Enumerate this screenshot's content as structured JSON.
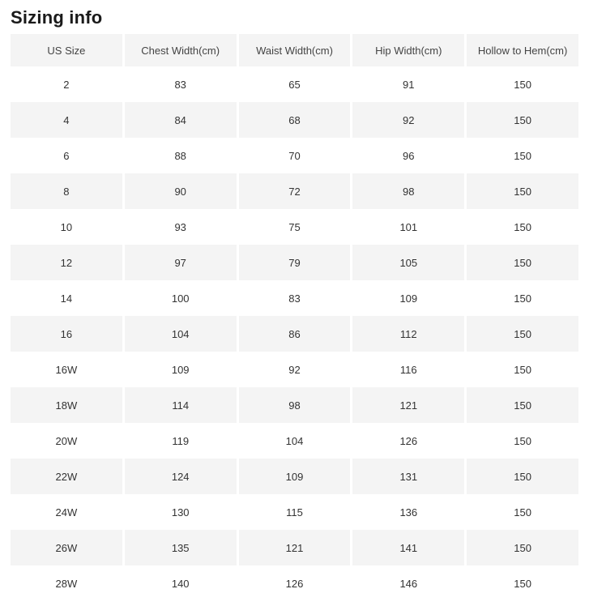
{
  "page": {
    "title": "Sizing info"
  },
  "table": {
    "columns": [
      "US Size",
      "Chest Width(cm)",
      "Waist Width(cm)",
      "Hip Width(cm)",
      "Hollow to Hem(cm)"
    ],
    "rows": [
      [
        "2",
        "83",
        "65",
        "91",
        "150"
      ],
      [
        "4",
        "84",
        "68",
        "92",
        "150"
      ],
      [
        "6",
        "88",
        "70",
        "96",
        "150"
      ],
      [
        "8",
        "90",
        "72",
        "98",
        "150"
      ],
      [
        "10",
        "93",
        "75",
        "101",
        "150"
      ],
      [
        "12",
        "97",
        "79",
        "105",
        "150"
      ],
      [
        "14",
        "100",
        "83",
        "109",
        "150"
      ],
      [
        "16",
        "104",
        "86",
        "112",
        "150"
      ],
      [
        "16W",
        "109",
        "92",
        "116",
        "150"
      ],
      [
        "18W",
        "114",
        "98",
        "121",
        "150"
      ],
      [
        "20W",
        "119",
        "104",
        "126",
        "150"
      ],
      [
        "22W",
        "124",
        "109",
        "131",
        "150"
      ],
      [
        "24W",
        "130",
        "115",
        "136",
        "150"
      ],
      [
        "26W",
        "135",
        "121",
        "141",
        "150"
      ],
      [
        "28W",
        "140",
        "126",
        "146",
        "150"
      ]
    ]
  },
  "colors": {
    "stripe_bg": "#f4f4f4",
    "header_bg": "#f4f4f4",
    "cell_text": "#333333",
    "header_text": "#444444",
    "title_text": "#1a1a1a",
    "page_bg": "#ffffff"
  }
}
